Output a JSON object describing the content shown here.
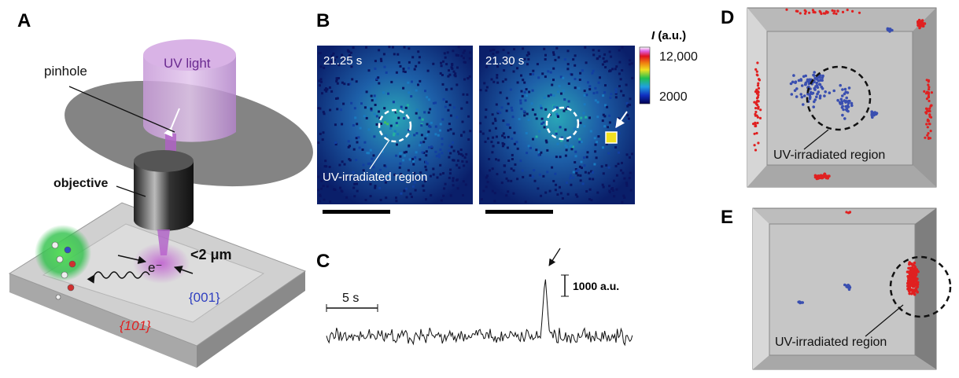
{
  "panels": {
    "A": {
      "label": "A",
      "uv_light": "UV light",
      "pinhole": "pinhole",
      "objective": "objective",
      "electron": "e⁻",
      "distance": "<2 μm",
      "facet_001": "{001}",
      "facet_101": "{101}"
    },
    "B": {
      "label": "B",
      "frame_1_time": "21.25 s",
      "frame_2_time": "21.30 s",
      "region": "UV-irradiated region",
      "colorbar_symbol": "I",
      "colorbar_unit": "(a.u.)",
      "colorbar_max": "12,000",
      "colorbar_min": "2000"
    },
    "C": {
      "label": "C",
      "time_scale": "5 s",
      "intensity_scale": "1000 a.u."
    },
    "D": {
      "label": "D",
      "region": "UV-irradiated region"
    },
    "E": {
      "label": "E",
      "region": "UV-irradiated region"
    }
  }
}
